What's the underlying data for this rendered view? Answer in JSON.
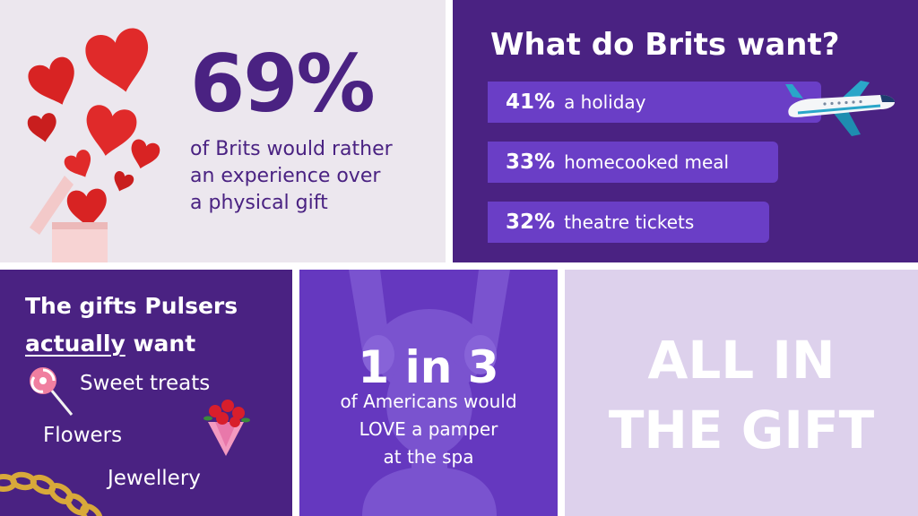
{
  "stat_panel": {
    "percent": "69%",
    "lines": [
      "of Brits would rather",
      "an experience over",
      "a physical gift"
    ]
  },
  "brits_panel": {
    "title": "What do Brits want?",
    "items": [
      {
        "pct": "41%",
        "label": "a holiday",
        "value": 41
      },
      {
        "pct": "33%",
        "label": "homecooked meal",
        "value": 33
      },
      {
        "pct": "32%",
        "label": "theatre tickets",
        "value": 32
      }
    ]
  },
  "gifts_panel": {
    "title_line1": "The gifts Pulsers",
    "title_underlined": "actually",
    "title_rest": " want",
    "items": [
      "Sweet treats",
      "Flowers",
      "Jewellery"
    ]
  },
  "americans_panel": {
    "big": "1 in 3",
    "lines": [
      "of Americans would",
      "LOVE a pamper",
      "at the spa"
    ]
  },
  "closing_panel": {
    "lines": [
      "ALL IN",
      "THE GIFT"
    ]
  },
  "colors": {
    "dark_purple": "#4a2282",
    "mid_purple": "#6538bf",
    "light_lilac": "#ddd1ec",
    "off_white": "#ece7ee",
    "heart_red": "#e02a2a"
  },
  "icons": [
    "heart-icon",
    "gift-box-icon",
    "airplane-icon",
    "lollipop-icon",
    "roses-bouquet-icon",
    "gold-chain-icon",
    "spa-woman-illustration"
  ]
}
